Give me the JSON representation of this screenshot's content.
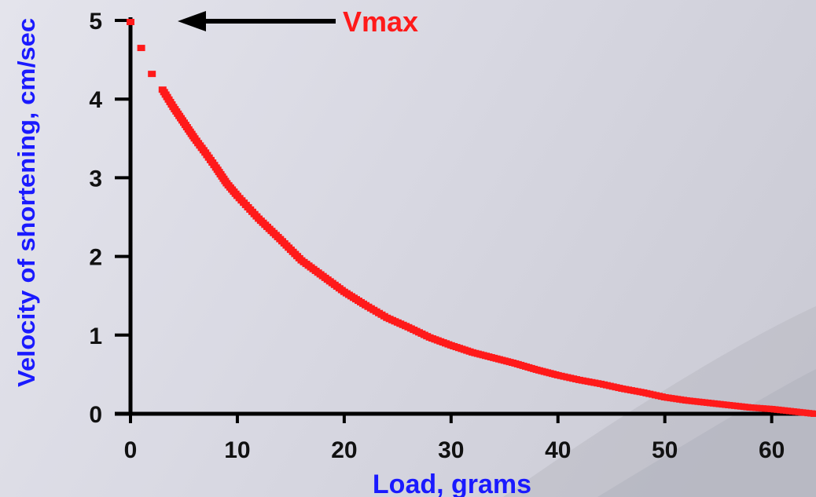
{
  "chart_data": {
    "type": "scatter",
    "xlabel": "Load, grams",
    "ylabel": "Velocity of shortening, cm/sec",
    "xlim": [
      0,
      64
    ],
    "ylim": [
      0,
      5
    ],
    "x_ticks": [
      "0",
      "10",
      "20",
      "30",
      "40",
      "50",
      "60"
    ],
    "y_ticks": [
      "0",
      "1",
      "2",
      "3",
      "4",
      "5"
    ],
    "grid": false,
    "legend": "none",
    "annotation": {
      "text": "Vmax",
      "color": "#ff1a1a",
      "points_to": [
        0,
        5
      ]
    },
    "series": [
      {
        "color": "#ff1a1a",
        "x": [
          0,
          1,
          2,
          3,
          4,
          5,
          6,
          7,
          8,
          9,
          10,
          12,
          14,
          16,
          18,
          20,
          22,
          24,
          26,
          28,
          30,
          32,
          34,
          36,
          38,
          40,
          42,
          44,
          46,
          48,
          50,
          52,
          54,
          56,
          58,
          60,
          62,
          64
        ],
        "y": [
          4.98,
          4.65,
          4.32,
          4.12,
          3.9,
          3.7,
          3.5,
          3.32,
          3.13,
          2.93,
          2.77,
          2.48,
          2.22,
          1.95,
          1.75,
          1.55,
          1.38,
          1.22,
          1.1,
          0.97,
          0.87,
          0.78,
          0.71,
          0.64,
          0.56,
          0.49,
          0.43,
          0.38,
          0.32,
          0.27,
          0.21,
          0.17,
          0.14,
          0.11,
          0.08,
          0.06,
          0.03,
          0.0
        ]
      }
    ]
  }
}
